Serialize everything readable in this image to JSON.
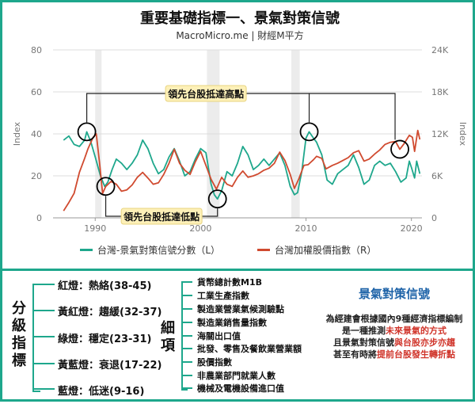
{
  "header": {
    "title": "重要基礎指標一、景氣對策信號",
    "subtitle": "MacroMicro.me | 財經M平方"
  },
  "chart_data": {
    "type": "line",
    "y_left": {
      "label": "Index",
      "ticks": [
        "80",
        "60",
        "40",
        "20",
        "0"
      ],
      "lim": [
        0,
        80
      ]
    },
    "y_right": {
      "label": "Index",
      "ticks": [
        "24K",
        "18K",
        "12K",
        "6K",
        "0"
      ],
      "lim": [
        0,
        24000
      ]
    },
    "x_ticks": [
      "1990",
      "2000",
      "2010",
      "2020"
    ],
    "x_lim": [
      1986,
      2021
    ],
    "series": [
      {
        "name": "台灣-景氣對策信號分數（L）",
        "axis": "left",
        "color": "#1ea78c",
        "points": [
          [
            1987.0,
            37
          ],
          [
            1987.5,
            39
          ],
          [
            1988.0,
            35
          ],
          [
            1988.5,
            34
          ],
          [
            1989.0,
            37
          ],
          [
            1989.2,
            41
          ],
          [
            1989.6,
            36
          ],
          [
            1990.0,
            29
          ],
          [
            1990.5,
            20
          ],
          [
            1990.9,
            15
          ],
          [
            1991.2,
            17
          ],
          [
            1991.6,
            23
          ],
          [
            1992.0,
            28
          ],
          [
            1992.5,
            26
          ],
          [
            1993.0,
            23
          ],
          [
            1993.5,
            26
          ],
          [
            1994.0,
            30
          ],
          [
            1994.5,
            37
          ],
          [
            1995.0,
            33
          ],
          [
            1995.5,
            26
          ],
          [
            1996.0,
            21
          ],
          [
            1996.5,
            23
          ],
          [
            1997.0,
            29
          ],
          [
            1997.5,
            33
          ],
          [
            1998.0,
            27
          ],
          [
            1998.5,
            20
          ],
          [
            1999.0,
            22
          ],
          [
            1999.5,
            28
          ],
          [
            2000.0,
            33
          ],
          [
            2000.5,
            31
          ],
          [
            2001.0,
            16
          ],
          [
            2001.3,
            11
          ],
          [
            2001.6,
            9
          ],
          [
            2002.0,
            13
          ],
          [
            2002.5,
            22
          ],
          [
            2003.0,
            20
          ],
          [
            2003.5,
            26
          ],
          [
            2004.0,
            34
          ],
          [
            2004.5,
            30
          ],
          [
            2005.0,
            23
          ],
          [
            2005.5,
            25
          ],
          [
            2006.0,
            28
          ],
          [
            2006.5,
            25
          ],
          [
            2007.0,
            28
          ],
          [
            2007.5,
            31
          ],
          [
            2008.0,
            25
          ],
          [
            2008.5,
            15
          ],
          [
            2008.9,
            11
          ],
          [
            2009.2,
            12
          ],
          [
            2009.6,
            22
          ],
          [
            2010.0,
            38
          ],
          [
            2010.3,
            41
          ],
          [
            2010.7,
            38
          ],
          [
            2011.0,
            36
          ],
          [
            2011.5,
            30
          ],
          [
            2012.0,
            18
          ],
          [
            2012.5,
            16
          ],
          [
            2013.0,
            21
          ],
          [
            2013.5,
            23
          ],
          [
            2014.0,
            25
          ],
          [
            2014.5,
            30
          ],
          [
            2015.0,
            24
          ],
          [
            2015.5,
            16
          ],
          [
            2016.0,
            18
          ],
          [
            2016.5,
            25
          ],
          [
            2017.0,
            27
          ],
          [
            2017.5,
            25
          ],
          [
            2018.0,
            26
          ],
          [
            2018.5,
            22
          ],
          [
            2019.0,
            17
          ],
          [
            2019.5,
            19
          ],
          [
            2019.8,
            27
          ],
          [
            2020.0,
            24
          ],
          [
            2020.3,
            19
          ],
          [
            2020.5,
            27
          ],
          [
            2020.8,
            21
          ]
        ]
      },
      {
        "name": "台灣加權股價指數（R）",
        "axis": "right",
        "color": "#d04a2f",
        "points": [
          [
            1987.0,
            1000
          ],
          [
            1987.5,
            2200
          ],
          [
            1988.0,
            3500
          ],
          [
            1988.5,
            6500
          ],
          [
            1989.0,
            8500
          ],
          [
            1989.3,
            9800
          ],
          [
            1989.8,
            11500
          ],
          [
            1990.1,
            12000
          ],
          [
            1990.4,
            8000
          ],
          [
            1990.7,
            3500
          ],
          [
            1991.0,
            4500
          ],
          [
            1991.5,
            5200
          ],
          [
            1992.0,
            4800
          ],
          [
            1992.5,
            3800
          ],
          [
            1993.0,
            4000
          ],
          [
            1993.5,
            4700
          ],
          [
            1994.0,
            5800
          ],
          [
            1994.5,
            6500
          ],
          [
            1995.0,
            5700
          ],
          [
            1995.5,
            4800
          ],
          [
            1996.0,
            5000
          ],
          [
            1996.5,
            6200
          ],
          [
            1997.0,
            7800
          ],
          [
            1997.5,
            9800
          ],
          [
            1998.0,
            7800
          ],
          [
            1998.5,
            6800
          ],
          [
            1999.0,
            6200
          ],
          [
            1999.5,
            8000
          ],
          [
            2000.0,
            9500
          ],
          [
            2000.5,
            7500
          ],
          [
            2001.0,
            5500
          ],
          [
            2001.5,
            4100
          ],
          [
            2002.0,
            5800
          ],
          [
            2002.5,
            4800
          ],
          [
            2003.0,
            4500
          ],
          [
            2003.5,
            5800
          ],
          [
            2004.0,
            6700
          ],
          [
            2004.5,
            5800
          ],
          [
            2005.0,
            6000
          ],
          [
            2005.5,
            6300
          ],
          [
            2006.0,
            6800
          ],
          [
            2006.5,
            7100
          ],
          [
            2007.0,
            7800
          ],
          [
            2007.5,
            9400
          ],
          [
            2008.0,
            8200
          ],
          [
            2008.5,
            6200
          ],
          [
            2008.9,
            4200
          ],
          [
            2009.3,
            5500
          ],
          [
            2009.8,
            7500
          ],
          [
            2010.2,
            7600
          ],
          [
            2010.7,
            8300
          ],
          [
            2011.0,
            8800
          ],
          [
            2011.5,
            8500
          ],
          [
            2011.9,
            7000
          ],
          [
            2012.5,
            7500
          ],
          [
            2013.0,
            7800
          ],
          [
            2013.5,
            8200
          ],
          [
            2014.0,
            8600
          ],
          [
            2014.5,
            9300
          ],
          [
            2015.0,
            9600
          ],
          [
            2015.5,
            8100
          ],
          [
            2016.0,
            8400
          ],
          [
            2016.5,
            9100
          ],
          [
            2017.0,
            9700
          ],
          [
            2017.5,
            10500
          ],
          [
            2018.0,
            10800
          ],
          [
            2018.5,
            10900
          ],
          [
            2018.9,
            9800
          ],
          [
            2019.3,
            10600
          ],
          [
            2019.8,
            11800
          ],
          [
            2020.1,
            11500
          ],
          [
            2020.3,
            9500
          ],
          [
            2020.6,
            12500
          ],
          [
            2020.8,
            11200
          ]
        ]
      }
    ],
    "annotations": [
      {
        "text": "領先台股抵達高點"
      },
      {
        "text": "領先台股抵達低點"
      }
    ]
  },
  "legend": [
    {
      "label": "台灣-景氣對策信號分數（L）",
      "color": "#1ea78c"
    },
    {
      "label": "台灣加權股價指數（R）",
      "color": "#d04a2f"
    }
  ],
  "classification": {
    "title": "分級指標",
    "title_chars": [
      "分",
      "級",
      "指",
      "標"
    ],
    "lamps": [
      {
        "label": "紅燈：熱絡(38-45)"
      },
      {
        "label": "黃紅燈：趨緩(32-37)"
      },
      {
        "label": "綠燈：穩定(23-31)"
      },
      {
        "label": "黃藍燈：衰退(17-22)"
      },
      {
        "label": "藍燈：低迷(9-16)"
      }
    ]
  },
  "items": {
    "title_chars": [
      "細",
      "項"
    ],
    "list": [
      {
        "label": "貨幣總計數M1B"
      },
      {
        "label": "工業生產指數"
      },
      {
        "label": "製造業營業氣候測驗點"
      },
      {
        "label": "製造業銷售量指數"
      },
      {
        "label": "海關出口值"
      },
      {
        "label": "批發、零售及餐飲業營業額"
      },
      {
        "label": "股價指數"
      },
      {
        "label": "非農業部門就業人數"
      },
      {
        "label": "機械及電機設備進口值"
      }
    ]
  },
  "callout": {
    "title": "景氣對策信號",
    "line1": "為經建會根據國內9種經濟指標編制",
    "line2_a": "是一種推測",
    "line2_b": "未來景氣的方式",
    "line3_a": "且景氣對策信號",
    "line3_b": "與台股亦步亦趨",
    "line4_a": "甚至有時將",
    "line4_b": "提前台股發生轉折點"
  }
}
